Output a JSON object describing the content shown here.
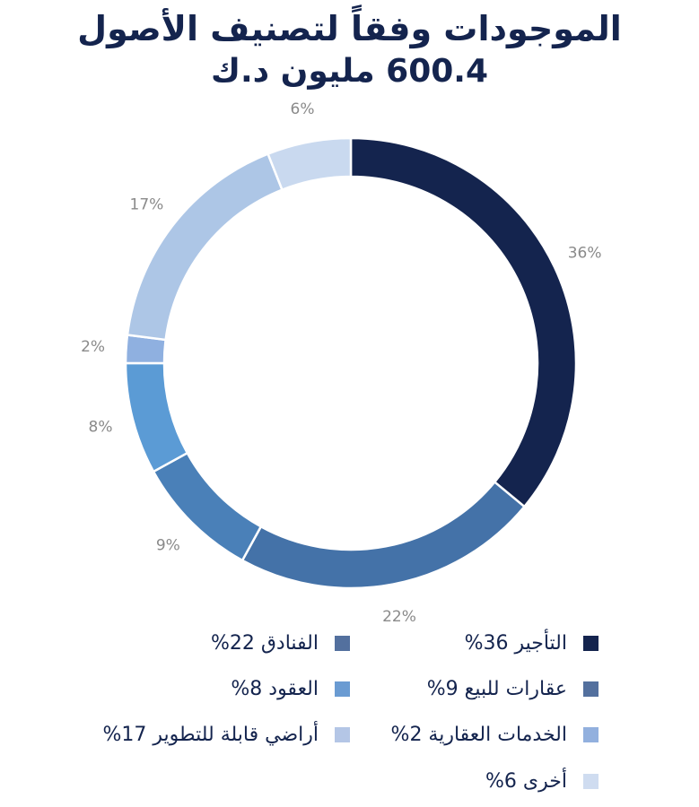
{
  "header": {
    "title_line1": "الموجودات وفقاً لتصنيف الأصول",
    "title_line2": "600.4 مليون د.ك"
  },
  "chart_data": {
    "type": "pie",
    "donut": true,
    "slices": [
      {
        "label": "التأجير",
        "value": 36,
        "display": "36%",
        "color": "#14244e"
      },
      {
        "label": "الفنادق",
        "value": 22,
        "display": "22%",
        "color": "#4472a8"
      },
      {
        "label": "عقارات للبيع",
        "value": 9,
        "display": "9%",
        "color": "#4a80b8"
      },
      {
        "label": "العقود",
        "value": 8,
        "display": "8%",
        "color": "#5b9bd5"
      },
      {
        "label": "الخدمات العقارية",
        "value": 2,
        "display": "2%",
        "color": "#8fb0e0"
      },
      {
        "label": "أراضي قابلة للتطوير",
        "value": 17,
        "display": "17%",
        "color": "#adc6e6"
      },
      {
        "label": "أخرى",
        "value": 6,
        "display": "6%",
        "color": "#c9d9ef"
      }
    ],
    "legend_placement": "bottom"
  },
  "legend": {
    "items": [
      {
        "text": "التأجير 36%",
        "color": "#14244e"
      },
      {
        "text": "الفنادق 22%",
        "color": "#53709e"
      },
      {
        "text": "عقارات للبيع 9%",
        "color": "#53709e"
      },
      {
        "text": "العقود 8%",
        "color": "#6a9bd2"
      },
      {
        "text": "الخدمات العقارية 2%",
        "color": "#92b0de"
      },
      {
        "text": "أراضي قابلة للتطوير 17%",
        "color": "#b4c6e6"
      },
      {
        "text": "أخرى 6%",
        "color": "#cfdcf0"
      }
    ]
  }
}
